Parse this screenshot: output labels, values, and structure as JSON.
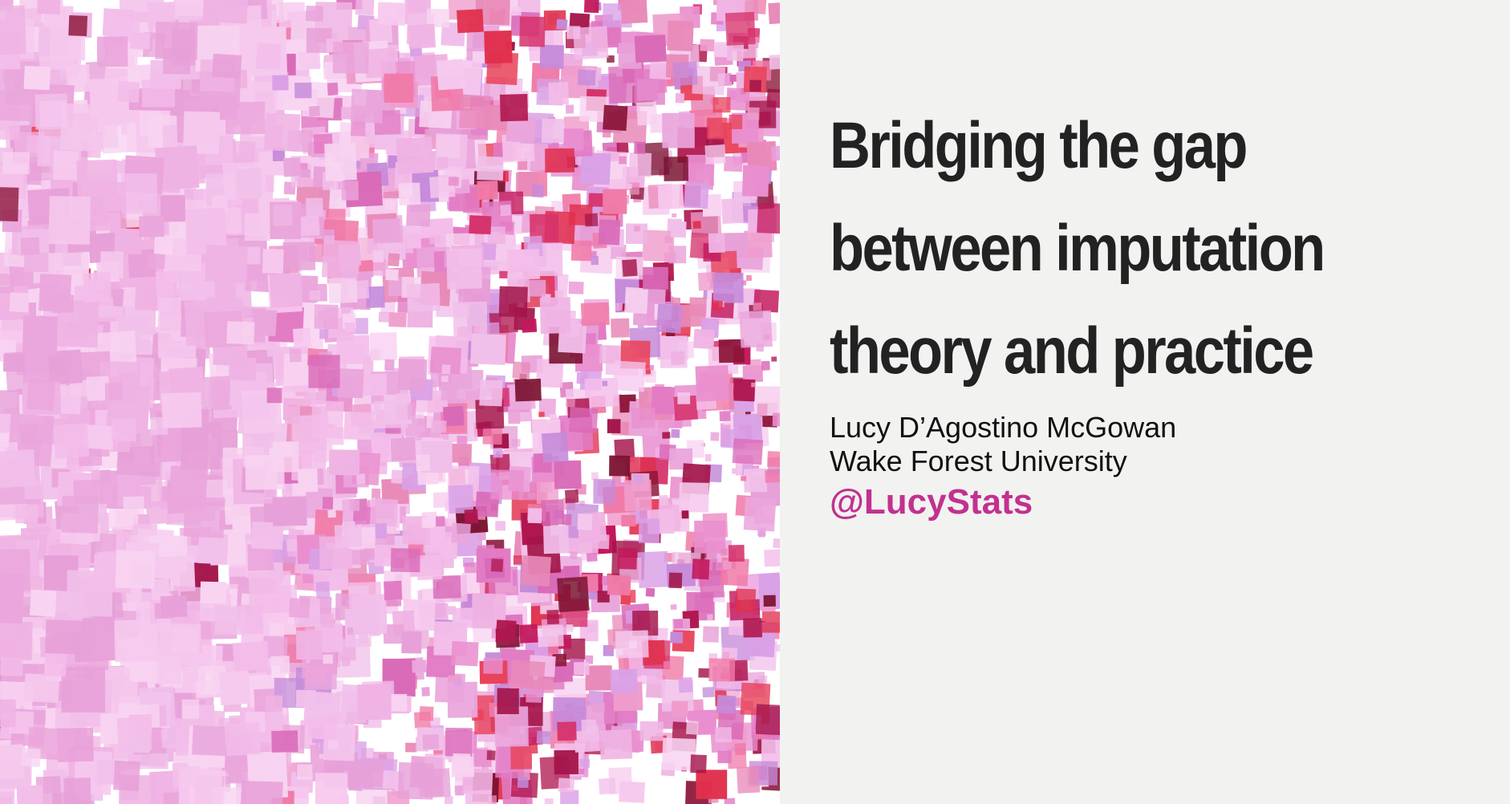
{
  "slide": {
    "title_lines": [
      "Bridging the gap",
      "between imputation",
      "theory and practice"
    ],
    "author": "Lucy D’Agostino McGowan",
    "affiliation": "Wake Forest University",
    "handle": "@LucyStats"
  },
  "colors": {
    "background": "#f2f2f1",
    "title": "#222222",
    "handle": "#c2318f"
  }
}
